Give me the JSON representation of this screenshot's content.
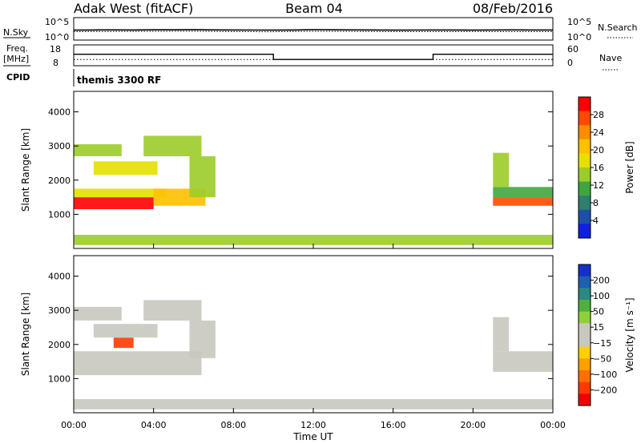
{
  "header": {
    "station": "Adak West (fitACF)",
    "beam": "Beam 04",
    "date": "08/Feb/2016"
  },
  "top_panels": {
    "nsky_label": "N.Sky",
    "nsearch_label": "N.Search",
    "freq_label_1": "Freq.",
    "freq_label_2": "[MHz]",
    "nave_label": "Nave",
    "cpid_label": "CPID",
    "cpid_text": "themis 3300 RF",
    "noise_ticks_left": [
      "10^5",
      "10^0"
    ],
    "noise_ticks_right": [
      "10^5",
      "10^0"
    ],
    "freq_ticks": [
      "18",
      "8"
    ],
    "nave_ticks": [
      "60",
      "0"
    ]
  },
  "colorbars": {
    "power": {
      "label": "Power [dB]",
      "ticks": [
        "28",
        "24",
        "20",
        "16",
        "12",
        "8",
        "4"
      ],
      "colors": [
        "#ff0000",
        "#ff4a00",
        "#ff8c00",
        "#ffc000",
        "#e6e000",
        "#9ccc2a",
        "#3fa63f",
        "#2f7f6f",
        "#1e4fa8",
        "#1020e0"
      ]
    },
    "velocity": {
      "label": "Velocity [m s⁻¹]",
      "ticks": [
        "200",
        "100",
        "50",
        "15",
        "−15",
        "−50",
        "−100",
        "−200"
      ],
      "colors": [
        "#1530c8",
        "#1f5fb0",
        "#2a8a80",
        "#4fb040",
        "#8ed03a",
        "#c8c8c0",
        "#c8c8c0",
        "#ffd000",
        "#ffa000",
        "#ff7000",
        "#ff3a00",
        "#f00000"
      ]
    }
  },
  "axes": {
    "ylabel": "Slant Range [km]",
    "xlabel": "Time UT",
    "yticks": [
      "4000",
      "3000",
      "2000",
      "1000"
    ],
    "xticks": [
      "00:00",
      "04:00",
      "08:00",
      "12:00",
      "16:00",
      "20:00",
      "00:00"
    ]
  },
  "chart_data": [
    {
      "type": "line",
      "title": "N.Sky / N.Search",
      "x_unit": "hours UT",
      "xlim": [
        0,
        24
      ],
      "ylog": true,
      "series": [
        {
          "name": "N.Sky",
          "x": [
            0,
            1,
            2,
            3,
            4,
            5,
            6,
            7,
            8,
            9,
            10,
            11,
            12,
            13,
            14,
            15,
            16,
            17,
            18,
            19,
            20,
            21,
            22,
            23,
            24
          ],
          "values": [
            150,
            160,
            170,
            165,
            180,
            175,
            190,
            170,
            160,
            155,
            150,
            165,
            200,
            180,
            170,
            160,
            150,
            155,
            160,
            165,
            150,
            160,
            170,
            165,
            160
          ]
        },
        {
          "name": "N.Search",
          "x": [
            0,
            2,
            4,
            6,
            8,
            10,
            12,
            14,
            16,
            18,
            20,
            22,
            24
          ],
          "values": [
            60,
            65,
            70,
            75,
            60,
            55,
            70,
            65,
            60,
            58,
            62,
            60,
            58
          ]
        }
      ]
    },
    {
      "type": "line",
      "title": "Freq. [MHz] / Nave",
      "x_unit": "hours UT",
      "xlim": [
        0,
        24
      ],
      "freq_ylim": [
        8,
        18
      ],
      "nave_ylim": [
        0,
        60
      ],
      "series": [
        {
          "name": "Freq.",
          "x": [
            0,
            10,
            10,
            18,
            18,
            24
          ],
          "values": [
            13.5,
            13.5,
            11,
            11,
            13.5,
            13.5
          ]
        },
        {
          "name": "Nave",
          "x": [
            0,
            24
          ],
          "values": [
            18,
            18
          ]
        }
      ]
    },
    {
      "type": "heatmap",
      "title": "Power [dB]",
      "x_unit": "hours UT",
      "xlim": [
        0,
        24
      ],
      "ylim": [
        0,
        4600
      ],
      "clim": [
        0,
        30
      ],
      "bands": [
        {
          "t0": 0.0,
          "t1": 4.0,
          "r0": 1150,
          "r1": 1500,
          "value": 28
        },
        {
          "t0": 0.0,
          "t1": 4.6,
          "r0": 1500,
          "r1": 1750,
          "value": 16
        },
        {
          "t0": 4.0,
          "t1": 6.6,
          "r0": 1250,
          "r1": 1750,
          "value": 18
        },
        {
          "t0": 0.0,
          "t1": 2.4,
          "r0": 2700,
          "r1": 3050,
          "value": 14
        },
        {
          "t0": 1.0,
          "t1": 4.2,
          "r0": 2150,
          "r1": 2550,
          "value": 16
        },
        {
          "t0": 3.5,
          "t1": 6.4,
          "r0": 2700,
          "r1": 3300,
          "value": 14
        },
        {
          "t0": 5.8,
          "t1": 7.1,
          "r0": 1500,
          "r1": 2700,
          "value": 12
        },
        {
          "t0": 21.0,
          "t1": 24.0,
          "r0": 1250,
          "r1": 1500,
          "value": 26
        },
        {
          "t0": 21.0,
          "t1": 24.0,
          "r0": 1500,
          "r1": 1800,
          "value": 10
        },
        {
          "t0": 21.0,
          "t1": 21.8,
          "r0": 1800,
          "r1": 2800,
          "value": 14
        },
        {
          "t0": 0.0,
          "t1": 24.0,
          "r0": 100,
          "r1": 400,
          "value": 12
        }
      ]
    },
    {
      "type": "heatmap",
      "title": "Velocity [m s⁻¹]",
      "x_unit": "hours UT",
      "xlim": [
        0,
        24
      ],
      "ylim": [
        0,
        4600
      ],
      "clim": [
        -200,
        200
      ],
      "bands": [
        {
          "t0": 0.0,
          "t1": 6.4,
          "r0": 1100,
          "r1": 1800,
          "value": 0
        },
        {
          "t0": 0.0,
          "t1": 2.4,
          "r0": 2700,
          "r1": 3100,
          "value": 0
        },
        {
          "t0": 1.0,
          "t1": 4.2,
          "r0": 2200,
          "r1": 2600,
          "value": 0
        },
        {
          "t0": 2.0,
          "t1": 3.0,
          "r0": 1900,
          "r1": 2200,
          "value": -150
        },
        {
          "t0": 3.5,
          "t1": 6.4,
          "r0": 2700,
          "r1": 3300,
          "value": 0
        },
        {
          "t0": 5.8,
          "t1": 7.1,
          "r0": 1600,
          "r1": 2700,
          "value": 0
        },
        {
          "t0": 21.0,
          "t1": 24.0,
          "r0": 1200,
          "r1": 1800,
          "value": 0
        },
        {
          "t0": 21.0,
          "t1": 21.8,
          "r0": 1800,
          "r1": 2800,
          "value": 0
        },
        {
          "t0": 0.0,
          "t1": 24.0,
          "r0": 100,
          "r1": 400,
          "value": -30
        }
      ]
    }
  ]
}
